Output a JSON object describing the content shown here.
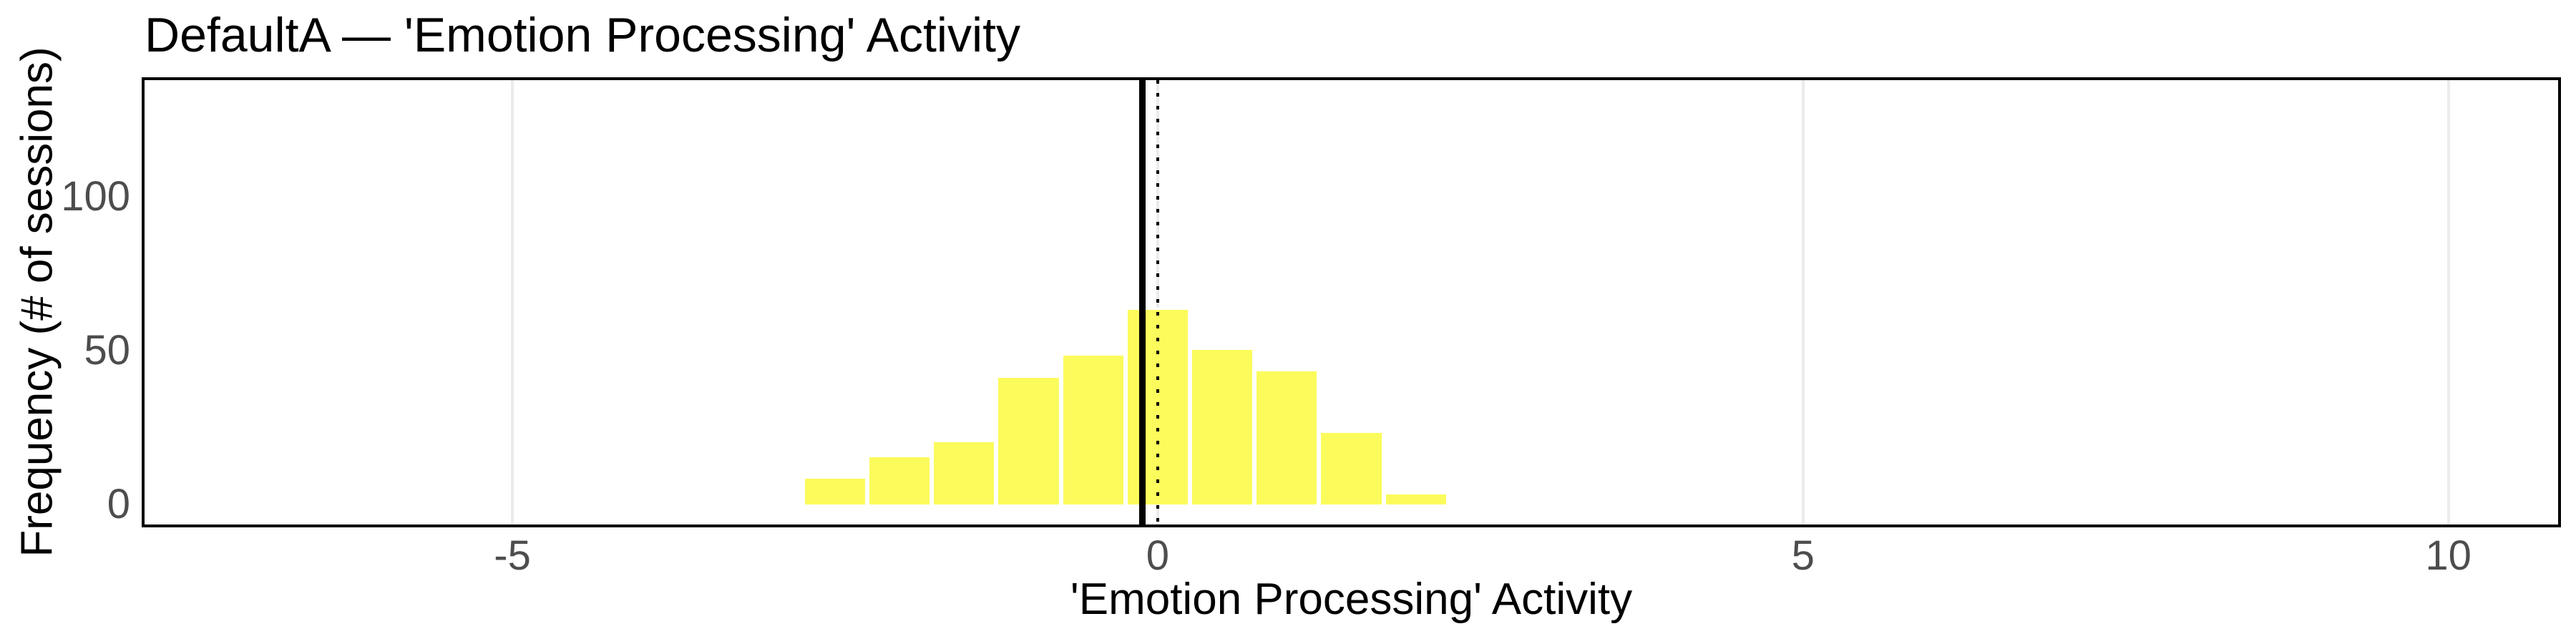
{
  "title": "DefaultA — 'Emotion Processing' Activity",
  "chart_data": {
    "type": "bar",
    "subtype": "histogram",
    "title": "DefaultA — 'Emotion Processing' Activity",
    "xlabel": "'Emotion Processing' Activity",
    "ylabel": "Frequency (# of sessions)",
    "bin_width": 0.5,
    "bin_edges": [
      -2.75,
      -2.25,
      -1.75,
      -1.25,
      -0.75,
      -0.25,
      0.25,
      0.75,
      1.25,
      1.75,
      2.25
    ],
    "bin_centers": [
      -2.5,
      -2.0,
      -1.5,
      -1.0,
      -0.5,
      0.0,
      0.5,
      1.0,
      1.5,
      2.0
    ],
    "values": [
      9,
      16,
      21,
      42,
      49,
      64,
      51,
      44,
      24,
      4
    ],
    "x_ticks": [
      {
        "value": -5,
        "label": "-5"
      },
      {
        "value": 0,
        "label": "0"
      },
      {
        "value": 5,
        "label": "5"
      },
      {
        "value": 10,
        "label": "10"
      }
    ],
    "y_ticks": [
      {
        "value": 0,
        "label": "0"
      },
      {
        "value": 50,
        "label": "50"
      },
      {
        "value": 100,
        "label": "100"
      }
    ],
    "xlim": [
      -7.85,
      10.85
    ],
    "ylim": [
      -6.5,
      138
    ],
    "grid_x_values": [
      -5,
      0,
      5,
      10
    ],
    "grid_horizontal": false,
    "reference_lines": [
      {
        "x": -0.12,
        "style": "solid"
      },
      {
        "x": 0.0,
        "style": "dotted"
      }
    ],
    "legend": "none",
    "colors": {
      "bar_fill": "#FBFB5C",
      "bar_border": "#FFFFFF",
      "gridline": "#EBEBEB",
      "tick_label": "#4D4D4D",
      "axis_title": "#000000",
      "panel_border": "#000000",
      "reference_line": "#000000",
      "background": "#FFFFFF"
    }
  }
}
